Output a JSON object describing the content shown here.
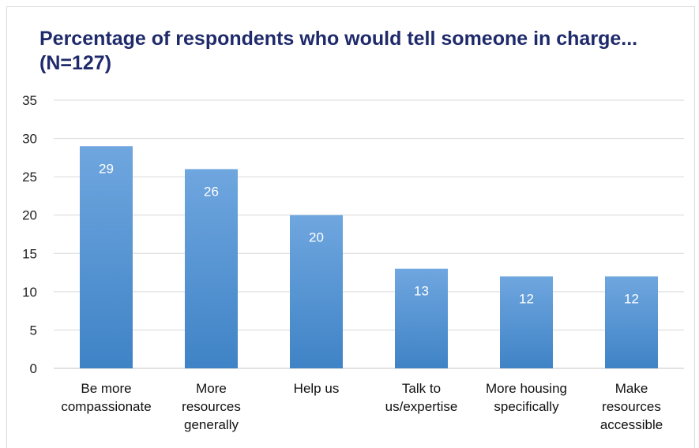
{
  "chart_data": {
    "type": "bar",
    "title": "Percentage of respondents who would tell someone in charge...(N=127)",
    "categories": [
      [
        "Be more",
        "compassionate"
      ],
      [
        "More",
        "resources",
        "generally"
      ],
      [
        "Help us"
      ],
      [
        "Talk to",
        "us/expertise"
      ],
      [
        "More housing",
        "specifically"
      ],
      [
        "Make",
        "resources",
        "accessible"
      ]
    ],
    "values": [
      29,
      26,
      20,
      13,
      12,
      12
    ],
    "data_labels": [
      "29",
      "26",
      "20",
      "13",
      "12",
      "12"
    ],
    "yticks": [
      "0",
      "5",
      "10",
      "15",
      "20",
      "25",
      "30",
      "35"
    ],
    "ylim": [
      0,
      35
    ],
    "grid": true,
    "legend": "none",
    "colors": {
      "bar_top": "#6fa6df",
      "bar_bottom": "#3f83c6",
      "grid": "#d9d9d9",
      "title": "#1f2a6b"
    }
  }
}
